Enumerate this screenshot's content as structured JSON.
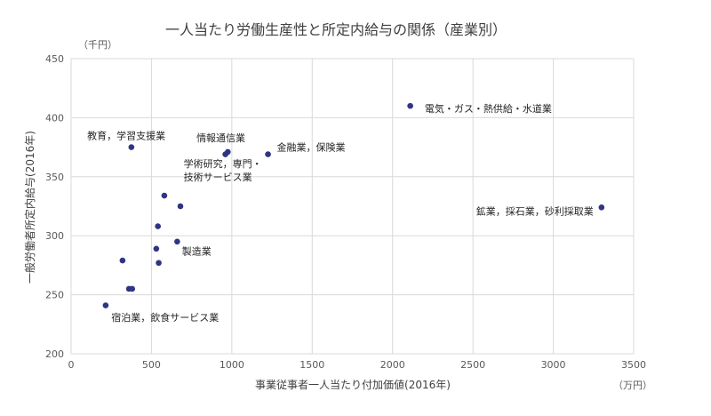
{
  "chart_data": {
    "type": "scatter",
    "title": "一人当たり労働生産性と所定内給与の関係（産業別）",
    "xlabel": "事業従事者一人当たり付加価値(2016年)",
    "ylabel": "一般労働者所定内給与(2016年)",
    "x_unit": "（万円）",
    "y_unit": "（千円）",
    "xlim": [
      0,
      3500
    ],
    "ylim": [
      200,
      450
    ],
    "x_ticks": [
      "0",
      "500",
      "1000",
      "1500",
      "2000",
      "2500",
      "3000",
      "3500"
    ],
    "y_ticks": [
      "200",
      "250",
      "300",
      "350",
      "400",
      "450"
    ],
    "grid": true,
    "points": [
      {
        "x": 2110,
        "y": 410
      },
      {
        "x": 3300,
        "y": 324
      },
      {
        "x": 375,
        "y": 375
      },
      {
        "x": 960,
        "y": 369
      },
      {
        "x": 975,
        "y": 371
      },
      {
        "x": 1225,
        "y": 369
      },
      {
        "x": 580,
        "y": 334
      },
      {
        "x": 680,
        "y": 325
      },
      {
        "x": 540,
        "y": 308
      },
      {
        "x": 660,
        "y": 295
      },
      {
        "x": 530,
        "y": 289
      },
      {
        "x": 320,
        "y": 279
      },
      {
        "x": 545,
        "y": 277
      },
      {
        "x": 360,
        "y": 255
      },
      {
        "x": 380,
        "y": 255
      },
      {
        "x": 215,
        "y": 241
      }
    ],
    "annotations": [
      {
        "id": "electricity",
        "text": "電気・ガス・熱供給・水道業",
        "x": 2200,
        "y": 405
      },
      {
        "id": "mining",
        "text": "鉱業，採石業，砂利採取業",
        "x": 2520,
        "y": 318
      },
      {
        "id": "education",
        "text": "教育，学習支援業",
        "x": 100,
        "y": 382
      },
      {
        "id": "info",
        "text": "情報通信業",
        "x": 780,
        "y": 380
      },
      {
        "id": "finance",
        "text": "金融業，保険業",
        "x": 1280,
        "y": 372
      },
      {
        "id": "academic-1",
        "text": "学術研究，専門・",
        "x": 700,
        "y": 358
      },
      {
        "id": "academic-2",
        "text": "技術サービス業",
        "x": 700,
        "y": 347
      },
      {
        "id": "manufacturing",
        "text": "製造業",
        "x": 690,
        "y": 284
      },
      {
        "id": "lodging",
        "text": "宿泊業，飲食サービス業",
        "x": 250,
        "y": 228
      }
    ]
  }
}
